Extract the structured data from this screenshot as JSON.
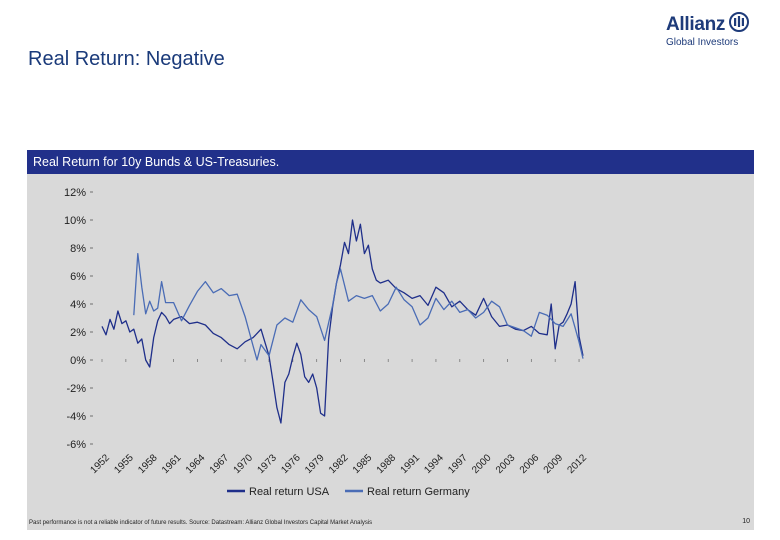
{
  "header": {
    "title": "Real Return: Negative"
  },
  "logo": {
    "name": "Allianz",
    "sub": "Global Investors"
  },
  "panel": {
    "title": "Real Return for 10y Bunds & US-Treasuries."
  },
  "footer": {
    "disclaimer": "Past performance is not a reliable indicator of future results. Source: Datastream: Allianz Global Investors Capital Market Analysis",
    "page_number": "10"
  },
  "colors": {
    "usa": "#1f2f8a",
    "germany": "#4a6cb5",
    "header_bar": "#21308a",
    "panel_bg": "#d9d9d9"
  },
  "chart_data": {
    "type": "line",
    "title": "Real Return for 10y Bunds & US-Treasuries.",
    "ylim": [
      -6,
      12
    ],
    "y_ticks": [
      12,
      10,
      8,
      6,
      4,
      2,
      0,
      -2,
      -4,
      -6
    ],
    "y_tick_labels": [
      "12%",
      "10%",
      "8%",
      "6%",
      "4%",
      "2%",
      "0%",
      "-2%",
      "-4%",
      "-6%"
    ],
    "xlim": [
      1952,
      2013
    ],
    "x_ticks": [
      1952,
      1955,
      1958,
      1961,
      1964,
      1967,
      1970,
      1973,
      1976,
      1979,
      1982,
      1985,
      1988,
      1991,
      1994,
      1997,
      2000,
      2003,
      2006,
      2009,
      2012
    ],
    "x_tick_labels": [
      "1952",
      "1955",
      "1958",
      "1961",
      "1964",
      "1967",
      "1970",
      "1973",
      "1976",
      "1979",
      "1982",
      "1985",
      "1988",
      "1991",
      "1994",
      "1997",
      "2000",
      "2003",
      "2006",
      "2009",
      "2012"
    ],
    "legend": [
      "Real return USA",
      "Real return Germany"
    ],
    "legend_position": "bottom",
    "series": [
      {
        "name": "Real return USA",
        "color": "#1f2f8a",
        "x": [
          1952,
          1952.5,
          1953,
          1953.5,
          1954,
          1954.5,
          1955,
          1955.5,
          1956,
          1956.5,
          1957,
          1957.5,
          1958,
          1958.5,
          1959,
          1959.5,
          1960,
          1960.5,
          1961,
          1962,
          1963,
          1964,
          1965,
          1966,
          1967,
          1968,
          1969,
          1970,
          1971,
          1972,
          1973,
          1973.5,
          1974,
          1974.5,
          1975,
          1975.5,
          1976,
          1976.5,
          1977,
          1977.5,
          1978,
          1978.5,
          1979,
          1979.5,
          1980,
          1980.5,
          1981,
          1981.5,
          1982,
          1982.5,
          1983,
          1983.5,
          1984,
          1984.5,
          1985,
          1985.5,
          1986,
          1986.5,
          1987,
          1987.5,
          1988,
          1989,
          1990,
          1991,
          1992,
          1993,
          1994,
          1995,
          1996,
          1997,
          1998,
          1999,
          2000,
          2001,
          2002,
          2003,
          2004,
          2005,
          2006,
          2007,
          2008,
          2008.5,
          2009,
          2009.5,
          2010,
          2010.5,
          2011,
          2011.5,
          2012,
          2012.5
        ],
        "values": [
          2.4,
          1.8,
          2.9,
          2.2,
          3.5,
          2.6,
          2.8,
          2.0,
          2.2,
          1.2,
          1.5,
          0.0,
          -0.5,
          1.6,
          2.8,
          3.4,
          3.1,
          2.6,
          2.9,
          3.1,
          2.6,
          2.7,
          2.5,
          1.9,
          1.6,
          1.1,
          0.8,
          1.3,
          1.6,
          2.2,
          0.3,
          -1.5,
          -3.4,
          -4.5,
          -1.6,
          -1.0,
          0.2,
          1.2,
          0.4,
          -1.2,
          -1.6,
          -1.0,
          -2.0,
          -3.8,
          -4.0,
          1.5,
          3.8,
          5.5,
          6.8,
          8.4,
          7.6,
          10.0,
          8.5,
          9.7,
          7.6,
          8.2,
          6.5,
          5.7,
          5.5,
          5.6,
          5.7,
          5.1,
          4.8,
          4.4,
          4.6,
          3.9,
          5.2,
          4.8,
          3.8,
          4.2,
          3.6,
          3.2,
          4.4,
          3.1,
          2.4,
          2.5,
          2.2,
          2.1,
          2.4,
          1.9,
          1.8,
          4.0,
          0.8,
          2.5,
          2.7,
          3.3,
          4.0,
          5.6,
          1.7,
          0.3
        ]
      },
      {
        "name": "Real return Germany",
        "color": "#4a6cb5",
        "x": [
          1956,
          1956.5,
          1957,
          1957.5,
          1958,
          1958.5,
          1959,
          1959.5,
          1960,
          1961,
          1962,
          1963,
          1964,
          1965,
          1966,
          1967,
          1968,
          1969,
          1970,
          1971,
          1971.5,
          1972,
          1973,
          1974,
          1975,
          1976,
          1977,
          1978,
          1979,
          1980,
          1981,
          1981.5,
          1982,
          1983,
          1984,
          1985,
          1986,
          1987,
          1988,
          1989,
          1990,
          1991,
          1992,
          1993,
          1994,
          1995,
          1996,
          1997,
          1998,
          1999,
          2000,
          2001,
          2002,
          2003,
          2004,
          2005,
          2006,
          2007,
          2008,
          2009,
          2010,
          2011,
          2011.5,
          2012,
          2012.5
        ],
        "values": [
          3.2,
          7.6,
          5.2,
          3.3,
          4.2,
          3.5,
          3.7,
          5.6,
          4.1,
          4.1,
          2.8,
          3.9,
          4.9,
          5.6,
          4.8,
          5.1,
          4.6,
          4.7,
          3.1,
          1.0,
          0.0,
          1.1,
          0.3,
          2.5,
          3.0,
          2.7,
          4.3,
          3.6,
          3.1,
          1.4,
          3.9,
          5.5,
          6.5,
          4.2,
          4.6,
          4.4,
          4.6,
          3.5,
          4.0,
          5.2,
          4.3,
          3.8,
          2.5,
          3.0,
          4.4,
          3.6,
          4.2,
          3.4,
          3.6,
          3.0,
          3.4,
          4.2,
          3.8,
          2.5,
          2.3,
          2.1,
          1.7,
          3.4,
          3.2,
          2.6,
          2.4,
          3.3,
          2.3,
          1.3,
          0.1
        ]
      }
    ]
  }
}
